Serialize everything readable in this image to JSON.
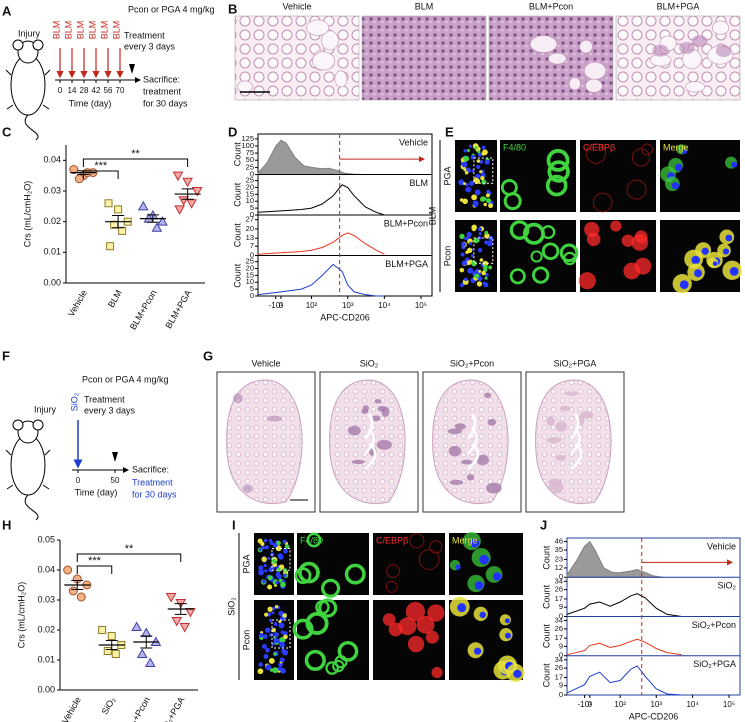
{
  "panel_labels": [
    "A",
    "B",
    "C",
    "D",
    "E",
    "F",
    "G",
    "H",
    "I",
    "J"
  ],
  "panel_a": {
    "injury": "Injury",
    "agent": "BLM",
    "dose": "Pcon or PGA 4 mg/kg",
    "treatment": [
      "Treatment",
      "every 3 days"
    ],
    "sacrifice": [
      "Sacrifice:",
      "treatment",
      "for 30 days"
    ],
    "time_ticks": [
      0,
      14,
      28,
      42,
      56,
      70
    ],
    "time_label": "Time (day)"
  },
  "panel_b": {
    "titles": [
      "Vehicle",
      "BLM",
      "BLM+Pcon",
      "BLM+PGA"
    ]
  },
  "panel_e": {
    "channels": [
      "F4/80",
      "C/EBPβ",
      "Merge"
    ],
    "rows": [
      "PGA",
      "Pcon"
    ],
    "group": "BLM"
  },
  "panel_f": {
    "injury": "Injury",
    "agent": "SiO₂",
    "dose": "Pcon or PGA 4 mg/kg",
    "treatment": [
      "Treatment",
      "every 3 days"
    ],
    "sacrifice": "Sacrifice:",
    "sacrifice_note": [
      "Treatment",
      "for 30 days"
    ],
    "time_ticks": [
      0,
      50
    ],
    "time_label": "Time (day)"
  },
  "panel_g": {
    "titles": [
      "Vehicle",
      "SiO₂",
      "SiO₂+Pcon",
      "SiO₂+PGA"
    ]
  },
  "panel_i": {
    "channels": [
      "F4/80",
      "C/EBPβ",
      "Merge"
    ],
    "rows": [
      "PGA",
      "Pcon"
    ],
    "group": "SiO₂"
  },
  "chart_data": [
    {
      "type": "strip",
      "ylabel": "Crs (mL/cmH₂O)",
      "categories": [
        "Vehicle",
        "BLM",
        "BLM+Pcon",
        "BLM+PGA"
      ],
      "values": [
        [
          0.037,
          0.035,
          0.036,
          0.034,
          0.036
        ],
        [
          0.026,
          0.024,
          0.02,
          0.019,
          0.017,
          0.012
        ],
        [
          0.025,
          0.022,
          0.02,
          0.021,
          0.018
        ],
        [
          0.035,
          0.033,
          0.03,
          0.027,
          0.026,
          0.024
        ]
      ],
      "means": [
        0.036,
        0.02,
        0.021,
        0.029
      ],
      "sems": [
        0.0006,
        0.002,
        0.0012,
        0.0017
      ],
      "colors": [
        "#f4b183",
        "#fff2a8",
        "#b4b4f0",
        "#f4a7a7"
      ],
      "edge_colors": [
        "#a0522d",
        "#8b7d2a",
        "#4040a0",
        "#c03030"
      ],
      "markers": [
        "circle",
        "square",
        "triangle",
        "triangle-down"
      ],
      "ylim": [
        0,
        0.045
      ],
      "yticks": [
        {
          "value": 0,
          "label": "0.00"
        },
        {
          "value": 0.01,
          "label": "0.01"
        },
        {
          "value": 0.02,
          "label": "0.02"
        },
        {
          "value": 0.03,
          "label": "0.03"
        },
        {
          "value": 0.04,
          "label": "0.04"
        }
      ],
      "significance": [
        {
          "from": 0,
          "to": 1,
          "label": "***"
        },
        {
          "from": 0,
          "to": 3,
          "label": "**"
        }
      ]
    },
    {
      "type": "line",
      "xlabel": "APC-CD206",
      "ylabel": "Count",
      "xscale": "biexponential",
      "xlim": [
        -60,
        200000
      ],
      "xticks": [
        {
          "value": -10,
          "label": "-10¹"
        },
        0,
        {
          "value": 100,
          "label": "10²"
        },
        {
          "value": 1000,
          "label": "10³"
        },
        {
          "value": 10000,
          "label": "10⁴"
        },
        {
          "value": 100000,
          "label": "10⁵"
        }
      ],
      "gate": 600,
      "divider_color": "#000000",
      "panels": [
        {
          "name": "Vehicle",
          "color": "#808080",
          "filled": true,
          "ylim": [
            0,
            135
          ],
          "yticks": [
            0,
            25,
            50,
            75,
            100,
            125
          ],
          "x": [
            -60,
            -30,
            -10,
            0,
            10,
            30,
            60,
            100,
            200,
            300,
            500,
            800,
            1500,
            3000
          ],
          "values": [
            5,
            40,
            100,
            120,
            110,
            60,
            30,
            25,
            20,
            22,
            15,
            5,
            1,
            0
          ]
        },
        {
          "name": "BLM",
          "color": "#000000",
          "filled": false,
          "ylim": [
            0,
            28
          ],
          "yticks": [
            0,
            5,
            10,
            15,
            20,
            25
          ],
          "x": [
            -60,
            0,
            50,
            100,
            200,
            400,
            700,
            1000,
            1500,
            3000,
            6000,
            10000
          ],
          "values": [
            2,
            3,
            4,
            5,
            8,
            14,
            22,
            20,
            14,
            6,
            2,
            0
          ]
        },
        {
          "name": "BLM+Pcon",
          "color": "#e8341c",
          "filled": false,
          "ylim": [
            0,
            29
          ],
          "yticks": [
            0,
            7,
            13,
            20,
            27
          ],
          "x": [
            -60,
            0,
            50,
            100,
            200,
            400,
            700,
            1000,
            1500,
            3000,
            6000,
            10000
          ],
          "values": [
            1,
            2,
            3,
            4,
            6,
            10,
            15,
            17,
            15,
            9,
            4,
            1
          ]
        },
        {
          "name": "BLM+PGA",
          "color": "#1f3fd0",
          "filled": false,
          "ylim": [
            0,
            28
          ],
          "yticks": [
            0,
            5,
            10,
            15,
            20,
            25
          ],
          "x": [
            -60,
            0,
            50,
            100,
            200,
            400,
            700,
            1000,
            1500,
            3000,
            6000,
            10000
          ],
          "values": [
            1,
            3,
            5,
            8,
            15,
            23,
            18,
            8,
            3,
            1,
            0,
            0
          ]
        }
      ]
    },
    {
      "type": "strip",
      "ylabel": "Crs (mL/cmH₂O)",
      "categories": [
        "Vehicle",
        "SiO₂",
        "SiO₂+Pcon",
        "SiO₂+PGA"
      ],
      "values": [
        [
          0.04,
          0.037,
          0.035,
          0.033,
          0.031
        ],
        [
          0.02,
          0.018,
          0.015,
          0.013,
          0.012
        ],
        [
          0.021,
          0.019,
          0.016,
          0.012,
          0.009
        ],
        [
          0.031,
          0.029,
          0.026,
          0.023,
          0.021
        ]
      ],
      "means": [
        0.035,
        0.015,
        0.016,
        0.027
      ],
      "sems": [
        0.0015,
        0.0015,
        0.002,
        0.0018
      ],
      "colors": [
        "#f4b183",
        "#fff2a8",
        "#b4b4f0",
        "#f4a7a7"
      ],
      "edge_colors": [
        "#a0522d",
        "#8b7d2a",
        "#4040a0",
        "#c03030"
      ],
      "markers": [
        "circle",
        "square",
        "triangle",
        "triangle-down"
      ],
      "ylim": [
        0,
        0.05
      ],
      "yticks": [
        {
          "value": 0,
          "label": "0.00"
        },
        {
          "value": 0.01,
          "label": "0.01"
        },
        {
          "value": 0.02,
          "label": "0.02"
        },
        {
          "value": 0.03,
          "label": "0.03"
        },
        {
          "value": 0.04,
          "label": "0.04"
        },
        {
          "value": 0.05,
          "label": "0.05"
        }
      ],
      "significance": [
        {
          "from": 0,
          "to": 1,
          "label": "***"
        },
        {
          "from": 0,
          "to": 3,
          "label": "**"
        }
      ]
    },
    {
      "type": "line",
      "xlabel": "APC-CD206",
      "ylabel": "Count",
      "xscale": "biexponential",
      "xlim": [
        -60,
        200000
      ],
      "xticks": [
        {
          "value": -10,
          "label": "-10¹"
        },
        0,
        {
          "value": 100,
          "label": "10²"
        },
        {
          "value": 1000,
          "label": "10³"
        },
        {
          "value": 10000,
          "label": "10⁴"
        },
        {
          "value": 100000,
          "label": "10⁵"
        }
      ],
      "gate": 400,
      "divider_color": "#1f3f9f",
      "panels": [
        {
          "name": "Vehicle",
          "color": "#808080",
          "filled": true,
          "ylim": [
            0,
            48
          ],
          "yticks": [
            0,
            12,
            23,
            35,
            46
          ],
          "x": [
            -60,
            -30,
            -10,
            0,
            10,
            30,
            60,
            100,
            200,
            300,
            500,
            800,
            1500
          ],
          "values": [
            3,
            20,
            40,
            46,
            35,
            12,
            6,
            6,
            8,
            10,
            6,
            2,
            0
          ]
        },
        {
          "name": "SiO₂",
          "color": "#000000",
          "filled": false,
          "ylim": [
            0,
            36
          ],
          "yticks": [
            0,
            9,
            17,
            26,
            34
          ],
          "x": [
            -60,
            -10,
            0,
            20,
            50,
            100,
            200,
            300,
            500,
            1000,
            2000,
            5000
          ],
          "values": [
            2,
            8,
            12,
            14,
            10,
            14,
            20,
            22,
            18,
            8,
            2,
            0
          ]
        },
        {
          "name": "SiO₂+Pcon",
          "color": "#e8341c",
          "filled": false,
          "ylim": [
            0,
            36
          ],
          "yticks": [
            0,
            9,
            17,
            26,
            34
          ],
          "x": [
            -60,
            -10,
            0,
            20,
            50,
            100,
            200,
            300,
            500,
            1000,
            2000,
            5000
          ],
          "values": [
            1,
            5,
            10,
            12,
            8,
            10,
            14,
            16,
            13,
            7,
            3,
            1
          ]
        },
        {
          "name": "SiO₂+PGA",
          "color": "#1f3fd0",
          "filled": false,
          "ylim": [
            0,
            36
          ],
          "yticks": [
            0,
            9,
            17,
            26,
            34
          ],
          "x": [
            -60,
            -10,
            0,
            20,
            50,
            100,
            200,
            300,
            500,
            1000,
            2000,
            5000
          ],
          "values": [
            2,
            10,
            18,
            22,
            12,
            14,
            25,
            28,
            18,
            6,
            1,
            0
          ]
        }
      ]
    }
  ]
}
